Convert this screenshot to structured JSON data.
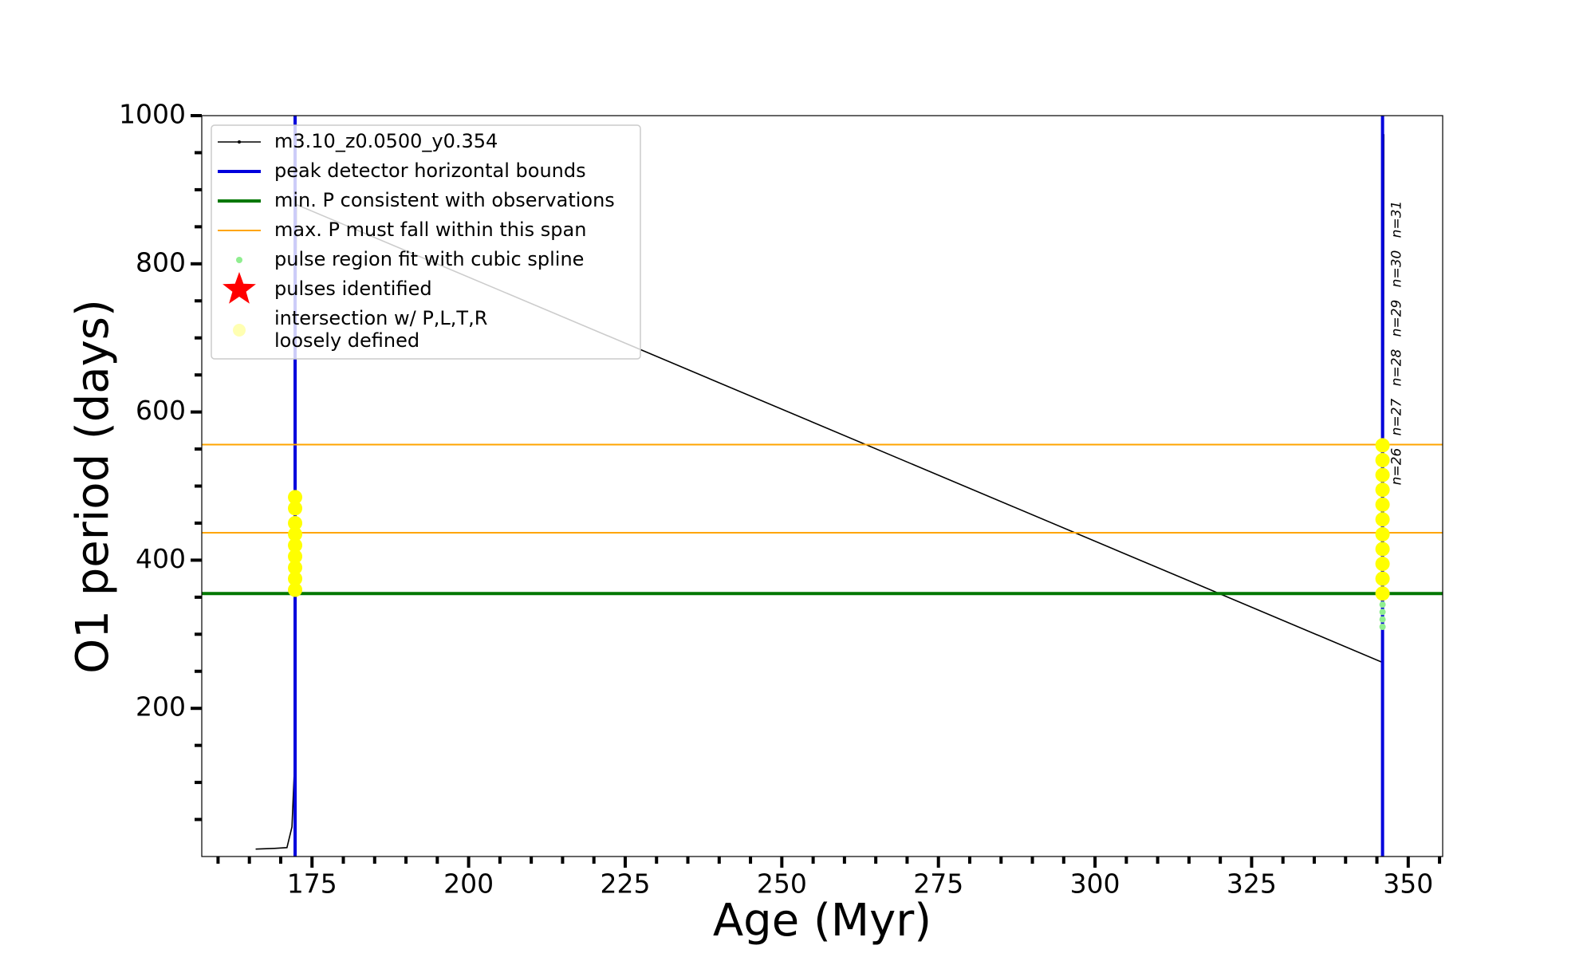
{
  "chart_data": {
    "type": "line",
    "xlabel": "Age (Myr)",
    "ylabel": "O1 period (days)",
    "xlim": [
      157.4,
      355.5
    ],
    "ylim": [
      0,
      1000
    ],
    "xticks": [
      175,
      200,
      225,
      250,
      275,
      300,
      325,
      350
    ],
    "xticks_minor": [
      160,
      165,
      170,
      180,
      185,
      190,
      195,
      205,
      210,
      215,
      220,
      230,
      235,
      240,
      245,
      255,
      260,
      265,
      270,
      280,
      285,
      290,
      295,
      305,
      310,
      315,
      320,
      330,
      335,
      340,
      345,
      355
    ],
    "yticks": [
      200,
      400,
      600,
      800,
      1000
    ],
    "yticks_minor": [
      50,
      100,
      150,
      250,
      300,
      350,
      450,
      500,
      550,
      650,
      700,
      750,
      850,
      900,
      950
    ],
    "series": [
      {
        "name": "m3.10_z0.0500_y0.354",
        "kind": "line",
        "color": "#000000",
        "x": [
          166,
          169,
          171,
          171.8,
          172.2,
          172.5,
          345.9,
          346.0,
          346.1
        ],
        "y": [
          10,
          11,
          12,
          40,
          120,
          880,
          262,
          125,
          975
        ]
      },
      {
        "name": "peak detector horizontal bounds",
        "kind": "vline",
        "color": "#0000dd",
        "x": [
          172.3,
          345.9
        ]
      },
      {
        "name": "min. P consistent with observations",
        "kind": "hline",
        "color": "#007700",
        "y": [
          355
        ]
      },
      {
        "name": "max. P must fall within this span",
        "kind": "hline",
        "color": "#ffa500",
        "y": [
          437,
          556
        ]
      },
      {
        "name": "pulse region fit with cubic spline",
        "kind": "scatter",
        "color": "#90ee90",
        "x": [
          345.9,
          345.9,
          345.9,
          345.9
        ],
        "y": [
          310,
          320,
          330,
          340
        ]
      },
      {
        "name": "pulses identified",
        "kind": "star",
        "color": "#ff0000",
        "x": [],
        "y": []
      },
      {
        "name": "intersection w/ P,L,T,R\nloosely defined",
        "kind": "big",
        "color": "#ffff00",
        "x": [
          172.3,
          172.3,
          172.3,
          172.3,
          172.3,
          172.3,
          172.3,
          172.3,
          172.3,
          345.9,
          345.9,
          345.9,
          345.9,
          345.9,
          345.9,
          345.9,
          345.9,
          345.9,
          345.9,
          345.9
        ],
        "y": [
          360,
          375,
          390,
          405,
          420,
          435,
          450,
          470,
          485,
          355,
          375,
          395,
          415,
          435,
          455,
          475,
          495,
          515,
          535,
          555
        ]
      }
    ],
    "annotations": [
      "n=31",
      "n=30",
      "n=29",
      "n=28",
      "n=27",
      "n=26"
    ]
  }
}
